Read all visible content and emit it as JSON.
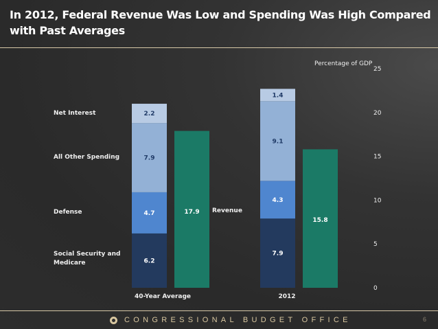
{
  "slide": {
    "title": "In 2012, Federal Revenue Was Low and Spending Was High Compared with Past Averages",
    "footer_org": "CONGRESSIONAL BUDGET OFFICE",
    "page_number": "6",
    "logo_icon": "cbo-seal-icon"
  },
  "colors": {
    "social_security_medicare": "#233a5e",
    "defense": "#4f86cf",
    "all_other_spending": "#93b1d6",
    "net_interest": "#b8cbe4",
    "revenue": "#1b7a66",
    "dark_label": "#1f3a66",
    "light_label": "#ffffff"
  },
  "chart_data": {
    "type": "bar",
    "stacked": true,
    "title": "In 2012, Federal Revenue Was Low and Spending Was High Compared with Past Averages",
    "ylabel": "Percentage of GDP",
    "ylim": [
      0,
      25
    ],
    "yticks": [
      0,
      5,
      10,
      15,
      20,
      25
    ],
    "y_axis_side": "right",
    "grid": false,
    "categories": [
      "40-Year Average",
      "2012"
    ],
    "spending_series": [
      {
        "name": "Social Security and Medicare",
        "values": [
          6.2,
          7.9
        ],
        "labels": [
          "6.2",
          "7.9"
        ],
        "color_key": "social_security_medicare",
        "label_color_key": "light_label"
      },
      {
        "name": "Defense",
        "values": [
          4.7,
          4.3
        ],
        "labels": [
          "4.7",
          "4.3"
        ],
        "color_key": "defense",
        "label_color_key": "light_label"
      },
      {
        "name": "All Other Spending",
        "values": [
          7.9,
          9.1
        ],
        "labels": [
          "7.9",
          "9.1"
        ],
        "color_key": "all_other_spending",
        "label_color_key": "dark_label"
      },
      {
        "name": "Net Interest",
        "values": [
          2.2,
          1.4
        ],
        "labels": [
          "2.2",
          "1.4"
        ],
        "color_key": "net_interest",
        "label_color_key": "dark_label"
      }
    ],
    "revenue_series": {
      "name": "Revenue",
      "values": [
        17.9,
        15.8
      ],
      "labels": [
        "17.9",
        "15.8"
      ],
      "color_key": "revenue"
    },
    "legend_placement": "left (inline category labels)",
    "legend_labels": {
      "net_interest": "Net Interest",
      "all_other_spending": "All Other Spending",
      "defense": "Defense",
      "social_security_medicare_line1": "Social Security and",
      "social_security_medicare_line2": "Medicare",
      "revenue": "Revenue"
    }
  }
}
